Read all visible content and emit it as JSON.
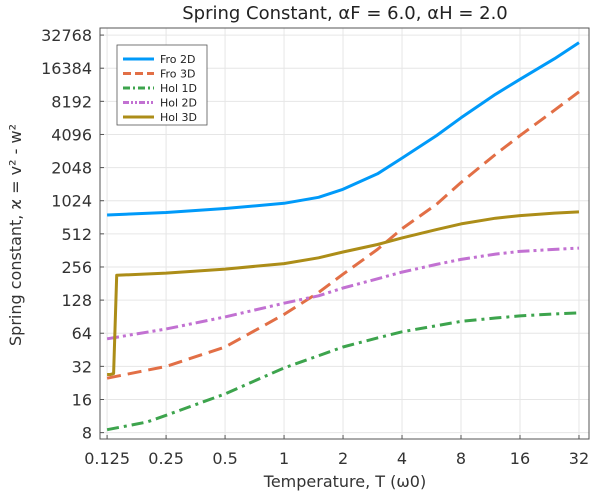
{
  "chart_data": {
    "type": "line",
    "title": "Spring Constant, αF = 6.0, αH = 2.0",
    "xlabel": "Temperature, T (ω0)",
    "ylabel": "Spring constant, ϰ = v² - w²",
    "xscale": "log2",
    "yscale": "log2",
    "xlim": [
      0.115,
      36
    ],
    "ylim": [
      7,
      38000
    ],
    "xticks": [
      0.125,
      0.25,
      0.5,
      1,
      2,
      4,
      8,
      16,
      32
    ],
    "xtick_labels": [
      "0.125",
      "0.25",
      "0.5",
      "1",
      "2",
      "4",
      "8",
      "16",
      "32"
    ],
    "yticks": [
      8,
      16,
      32,
      64,
      128,
      256,
      512,
      1024,
      2048,
      4096,
      8192,
      16384,
      32768
    ],
    "ytick_labels": [
      "8",
      "16",
      "32",
      "64",
      "128",
      "256",
      "512",
      "1024",
      "2048",
      "4096",
      "8192",
      "16384",
      "32768"
    ],
    "grid": true,
    "legend_position": "top-left",
    "series": [
      {
        "name": "Fro 2D",
        "color": "#009AF9",
        "dash": "solid",
        "points": [
          [
            0.125,
            760
          ],
          [
            0.25,
            800
          ],
          [
            0.5,
            870
          ],
          [
            1,
            970
          ],
          [
            1.5,
            1100
          ],
          [
            2,
            1300
          ],
          [
            3,
            1800
          ],
          [
            4,
            2500
          ],
          [
            6,
            4000
          ],
          [
            8,
            5800
          ],
          [
            12,
            9500
          ],
          [
            16,
            13000
          ],
          [
            24,
            20000
          ],
          [
            32,
            28000
          ]
        ]
      },
      {
        "name": "Fro 3D",
        "color": "#E26F46",
        "dash": "dash",
        "points": [
          [
            0.125,
            25
          ],
          [
            0.25,
            32
          ],
          [
            0.5,
            48
          ],
          [
            1,
            95
          ],
          [
            1.5,
            150
          ],
          [
            2,
            220
          ],
          [
            3,
            370
          ],
          [
            4,
            570
          ],
          [
            6,
            950
          ],
          [
            8,
            1500
          ],
          [
            12,
            2700
          ],
          [
            16,
            4000
          ],
          [
            24,
            6800
          ],
          [
            32,
            10000
          ]
        ]
      },
      {
        "name": "Hol 1D",
        "color": "#3DA44D",
        "dash": "dashdot",
        "points": [
          [
            0.125,
            8.5
          ],
          [
            0.2,
            10
          ],
          [
            0.25,
            11.5
          ],
          [
            0.5,
            18
          ],
          [
            1,
            31
          ],
          [
            1.5,
            40
          ],
          [
            2,
            48
          ],
          [
            3,
            58
          ],
          [
            4,
            66
          ],
          [
            6,
            75
          ],
          [
            8,
            82
          ],
          [
            12,
            88
          ],
          [
            16,
            92
          ],
          [
            24,
            96
          ],
          [
            32,
            98
          ]
        ]
      },
      {
        "name": "Hol 2D",
        "color": "#C271D2",
        "dash": "dashdotdot",
        "points": [
          [
            0.125,
            57
          ],
          [
            0.25,
            70
          ],
          [
            0.5,
            90
          ],
          [
            1,
            120
          ],
          [
            1.5,
            140
          ],
          [
            2,
            165
          ],
          [
            3,
            200
          ],
          [
            4,
            230
          ],
          [
            6,
            270
          ],
          [
            8,
            300
          ],
          [
            12,
            335
          ],
          [
            16,
            355
          ],
          [
            24,
            370
          ],
          [
            32,
            380
          ]
        ]
      },
      {
        "name": "Hol 3D",
        "color": "#AC8D18",
        "dash": "solid",
        "points": [
          [
            0.125,
            27
          ],
          [
            0.13,
            27
          ],
          [
            0.135,
            27.5
          ],
          [
            0.14,
            215
          ],
          [
            0.25,
            225
          ],
          [
            0.5,
            245
          ],
          [
            1,
            275
          ],
          [
            1.5,
            310
          ],
          [
            2,
            350
          ],
          [
            3,
            410
          ],
          [
            4,
            470
          ],
          [
            6,
            560
          ],
          [
            8,
            630
          ],
          [
            12,
            710
          ],
          [
            16,
            750
          ],
          [
            24,
            790
          ],
          [
            32,
            810
          ]
        ]
      }
    ]
  }
}
